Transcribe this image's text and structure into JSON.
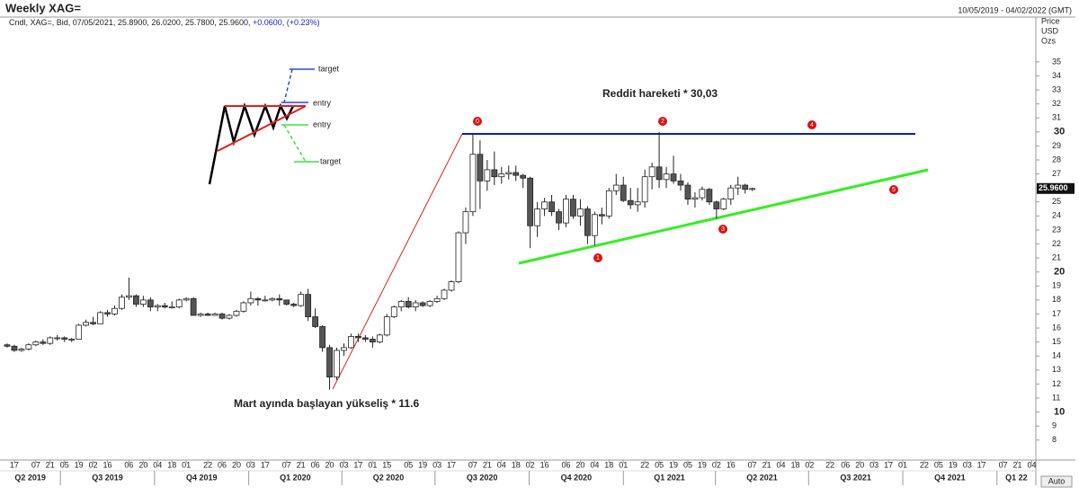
{
  "chart_data": {
    "type": "candlestick",
    "title": "Weekly XAG=",
    "date_range": "10/05/2019 - 04/02/2022 (GMT)",
    "info": "Cndl, XAG=, Bid, 07/05/2021, 25.8900, 26.0200, 25.7800, 25.9600,",
    "change": "+0.0600, (+0.23%)",
    "y_axis_label": [
      "Price",
      "USD",
      "Ozs"
    ],
    "last_price": {
      "value": 25.96,
      "label": "25.9600"
    },
    "bull_color": "#ffffff",
    "bear_color": "#555555",
    "x": [
      "2019-05-10",
      "2019-05-17",
      "2019-05-24",
      "2019-05-31",
      "2019-06-07",
      "2019-06-14",
      "2019-06-21",
      "2019-06-28",
      "2019-07-05",
      "2019-07-12",
      "2019-07-19",
      "2019-07-26",
      "2019-08-02",
      "2019-08-09",
      "2019-08-16",
      "2019-08-23",
      "2019-08-30",
      "2019-09-06",
      "2019-09-13",
      "2019-09-20",
      "2019-09-27",
      "2019-10-04",
      "2019-10-11",
      "2019-10-18",
      "2019-10-25",
      "2019-11-01",
      "2019-11-08",
      "2019-11-15",
      "2019-11-22",
      "2019-11-29",
      "2019-12-06",
      "2019-12-13",
      "2019-12-20",
      "2019-12-27",
      "2020-01-03",
      "2020-01-10",
      "2020-01-17",
      "2020-01-24",
      "2020-01-31",
      "2020-02-07",
      "2020-02-14",
      "2020-02-21",
      "2020-02-28",
      "2020-03-06",
      "2020-03-13",
      "2020-03-20",
      "2020-03-27",
      "2020-04-03",
      "2020-04-10",
      "2020-04-17",
      "2020-04-24",
      "2020-05-01",
      "2020-05-08",
      "2020-05-15",
      "2020-05-22",
      "2020-05-29",
      "2020-06-05",
      "2020-06-12",
      "2020-06-19",
      "2020-06-26",
      "2020-07-03",
      "2020-07-10",
      "2020-07-17",
      "2020-07-24",
      "2020-07-31",
      "2020-08-07",
      "2020-08-14",
      "2020-08-21",
      "2020-08-28",
      "2020-09-04",
      "2020-09-11",
      "2020-09-18",
      "2020-09-25",
      "2020-10-02",
      "2020-10-09",
      "2020-10-16",
      "2020-10-23",
      "2020-10-30",
      "2020-11-06",
      "2020-11-13",
      "2020-11-20",
      "2020-11-27",
      "2020-12-04",
      "2020-12-11",
      "2020-12-18",
      "2020-12-25",
      "2021-01-01",
      "2021-01-08",
      "2021-01-15",
      "2021-01-22",
      "2021-01-29",
      "2021-02-05",
      "2021-02-12",
      "2021-02-19",
      "2021-02-26",
      "2021-03-05",
      "2021-03-12",
      "2021-03-19",
      "2021-03-26",
      "2021-04-02",
      "2021-04-09",
      "2021-04-16",
      "2021-04-23",
      "2021-04-30",
      "2021-05-07"
    ],
    "ohlc": [
      [
        14.8,
        14.9,
        14.6,
        14.7
      ],
      [
        14.7,
        14.8,
        14.3,
        14.4
      ],
      [
        14.4,
        14.6,
        14.3,
        14.5
      ],
      [
        14.5,
        14.9,
        14.4,
        14.8
      ],
      [
        14.8,
        15.1,
        14.7,
        15.0
      ],
      [
        15.0,
        15.2,
        14.8,
        14.9
      ],
      [
        14.9,
        15.4,
        14.8,
        15.3
      ],
      [
        15.3,
        15.5,
        15.1,
        15.3
      ],
      [
        15.3,
        15.4,
        15.0,
        15.2
      ],
      [
        15.2,
        15.3,
        15.0,
        15.2
      ],
      [
        15.2,
        16.3,
        15.2,
        16.2
      ],
      [
        16.2,
        16.6,
        16.1,
        16.4
      ],
      [
        16.4,
        16.8,
        16.2,
        16.3
      ],
      [
        16.3,
        17.2,
        16.3,
        17.1
      ],
      [
        17.1,
        17.3,
        16.8,
        17.0
      ],
      [
        17.0,
        17.6,
        16.9,
        17.4
      ],
      [
        17.4,
        18.4,
        17.3,
        18.2
      ],
      [
        18.2,
        19.6,
        18.0,
        18.3
      ],
      [
        18.3,
        18.4,
        17.5,
        17.7
      ],
      [
        17.7,
        18.3,
        17.5,
        18.0
      ],
      [
        18.0,
        18.2,
        17.2,
        17.5
      ],
      [
        17.5,
        17.7,
        17.2,
        17.6
      ],
      [
        17.6,
        17.8,
        17.4,
        17.5
      ],
      [
        17.5,
        17.9,
        17.4,
        17.5
      ],
      [
        17.5,
        18.1,
        17.4,
        18.0
      ],
      [
        18.0,
        18.2,
        17.9,
        18.1
      ],
      [
        18.1,
        18.2,
        16.9,
        16.9
      ],
      [
        16.9,
        17.1,
        16.8,
        17.0
      ],
      [
        17.0,
        17.1,
        16.9,
        16.9
      ],
      [
        16.9,
        17.1,
        16.9,
        17.0
      ],
      [
        17.0,
        17.1,
        16.6,
        16.7
      ],
      [
        16.7,
        17.0,
        16.6,
        16.9
      ],
      [
        16.9,
        17.3,
        16.8,
        17.2
      ],
      [
        17.2,
        17.9,
        17.1,
        17.8
      ],
      [
        17.8,
        18.6,
        17.6,
        18.1
      ],
      [
        18.1,
        18.2,
        17.6,
        18.0
      ],
      [
        18.0,
        18.3,
        17.9,
        18.0
      ],
      [
        18.0,
        18.2,
        17.9,
        18.1
      ],
      [
        18.1,
        18.4,
        17.6,
        18.0
      ],
      [
        18.0,
        18.0,
        17.6,
        17.7
      ],
      [
        17.7,
        17.8,
        17.5,
        17.6
      ],
      [
        17.6,
        18.6,
        17.5,
        18.4
      ],
      [
        18.4,
        18.8,
        16.5,
        16.8
      ],
      [
        16.8,
        17.4,
        16.0,
        16.1
      ],
      [
        16.1,
        16.2,
        14.3,
        14.6
      ],
      [
        14.6,
        14.8,
        11.6,
        12.5
      ],
      [
        12.5,
        14.6,
        12.3,
        14.4
      ],
      [
        14.4,
        14.9,
        14.0,
        14.6
      ],
      [
        14.6,
        15.6,
        14.5,
        15.4
      ],
      [
        15.4,
        15.6,
        15.0,
        15.3
      ],
      [
        15.3,
        15.5,
        15.0,
        15.2
      ],
      [
        15.2,
        15.4,
        14.6,
        15.0
      ],
      [
        15.0,
        15.6,
        14.9,
        15.5
      ],
      [
        15.5,
        17.0,
        15.4,
        16.8
      ],
      [
        16.8,
        17.6,
        16.7,
        17.5
      ],
      [
        17.5,
        18.0,
        17.2,
        17.9
      ],
      [
        17.9,
        18.2,
        17.4,
        17.5
      ],
      [
        17.5,
        18.0,
        17.2,
        17.8
      ],
      [
        17.8,
        17.9,
        17.5,
        17.6
      ],
      [
        17.6,
        18.0,
        17.5,
        17.9
      ],
      [
        17.9,
        18.3,
        17.8,
        18.1
      ],
      [
        18.1,
        18.8,
        18.0,
        18.7
      ],
      [
        18.7,
        19.4,
        18.6,
        19.3
      ],
      [
        19.3,
        22.9,
        19.2,
        22.8
      ],
      [
        22.8,
        24.6,
        22.0,
        24.3
      ],
      [
        24.3,
        29.9,
        24.0,
        28.4
      ],
      [
        28.4,
        29.4,
        24.5,
        26.5
      ],
      [
        26.5,
        28.0,
        25.8,
        27.3
      ],
      [
        27.3,
        28.6,
        26.2,
        26.8
      ],
      [
        26.8,
        27.5,
        26.3,
        27.0
      ],
      [
        27.0,
        27.6,
        26.6,
        27.1
      ],
      [
        27.1,
        27.6,
        26.5,
        26.9
      ],
      [
        26.9,
        27.0,
        26.0,
        26.7
      ],
      [
        26.7,
        26.8,
        21.7,
        23.3
      ],
      [
        23.3,
        25.0,
        22.5,
        24.5
      ],
      [
        24.5,
        25.3,
        24.0,
        25.0
      ],
      [
        25.0,
        25.5,
        24.0,
        24.3
      ],
      [
        24.3,
        24.5,
        23.0,
        23.5
      ],
      [
        23.5,
        25.5,
        23.2,
        25.2
      ],
      [
        25.2,
        25.5,
        23.8,
        24.0
      ],
      [
        24.0,
        25.2,
        23.3,
        24.5
      ],
      [
        24.5,
        24.7,
        22.0,
        22.6
      ],
      [
        22.6,
        24.3,
        21.9,
        24.1
      ],
      [
        24.1,
        24.6,
        23.4,
        24.0
      ],
      [
        24.0,
        26.0,
        23.8,
        25.8
      ],
      [
        25.8,
        27.0,
        25.5,
        26.2
      ],
      [
        26.2,
        26.8,
        25.0,
        25.1
      ],
      [
        25.1,
        26.0,
        24.5,
        24.8
      ],
      [
        24.8,
        26.0,
        24.3,
        25.0
      ],
      [
        25.0,
        27.3,
        24.6,
        26.8
      ],
      [
        26.8,
        27.8,
        25.9,
        27.5
      ],
      [
        27.5,
        30.0,
        26.0,
        26.6
      ],
      [
        26.6,
        27.5,
        26.0,
        27.0
      ],
      [
        27.0,
        28.3,
        26.3,
        26.5
      ],
      [
        26.5,
        27.0,
        25.8,
        26.2
      ],
      [
        26.2,
        26.4,
        24.8,
        25.2
      ],
      [
        25.2,
        25.7,
        24.6,
        25.3
      ],
      [
        25.3,
        26.1,
        25.1,
        25.9
      ],
      [
        25.9,
        26.0,
        24.8,
        25.0
      ],
      [
        25.0,
        25.1,
        23.8,
        24.5
      ],
      [
        24.5,
        25.3,
        24.4,
        25.2
      ],
      [
        25.2,
        26.2,
        24.8,
        26.0
      ],
      [
        26.0,
        26.8,
        25.5,
        26.2
      ],
      [
        26.2,
        26.3,
        25.6,
        25.9
      ],
      [
        25.89,
        26.02,
        25.78,
        25.96
      ]
    ],
    "xlim": [
      "2019-05-03",
      "2022-02-08"
    ],
    "ylim": [
      6.7,
      38.2
    ],
    "yticks": [
      8,
      9,
      10,
      11,
      12,
      13,
      14,
      15,
      16,
      17,
      18,
      19,
      20,
      21,
      22,
      23,
      24,
      25,
      26,
      27,
      28,
      29,
      30,
      31,
      32,
      33,
      34,
      35
    ],
    "xticks": [
      {
        "value": "2019-05-17",
        "label": "17"
      },
      {
        "value": "2019-06-07",
        "label": "07"
      },
      {
        "value": "2019-06-21",
        "label": "21"
      },
      {
        "value": "2019-07-05",
        "label": "05"
      },
      {
        "value": "2019-07-19",
        "label": "19"
      },
      {
        "value": "2019-08-02",
        "label": "02"
      },
      {
        "value": "2019-08-16",
        "label": "16"
      },
      {
        "value": "2019-09-06",
        "label": "06"
      },
      {
        "value": "2019-09-20",
        "label": "20"
      },
      {
        "value": "2019-10-04",
        "label": "04"
      },
      {
        "value": "2019-10-18",
        "label": "18"
      },
      {
        "value": "2019-11-01",
        "label": "01"
      },
      {
        "value": "2019-11-22",
        "label": "22"
      },
      {
        "value": "2019-12-06",
        "label": "06"
      },
      {
        "value": "2019-12-20",
        "label": "20"
      },
      {
        "value": "2020-01-03",
        "label": "03"
      },
      {
        "value": "2020-01-17",
        "label": "17"
      },
      {
        "value": "2020-02-07",
        "label": "07"
      },
      {
        "value": "2020-02-21",
        "label": "21"
      },
      {
        "value": "2020-03-06",
        "label": "06"
      },
      {
        "value": "2020-03-20",
        "label": "20"
      },
      {
        "value": "2020-04-03",
        "label": "03"
      },
      {
        "value": "2020-04-17",
        "label": "17"
      },
      {
        "value": "2020-05-01",
        "label": "01"
      },
      {
        "value": "2020-05-15",
        "label": "15"
      },
      {
        "value": "2020-06-05",
        "label": "05"
      },
      {
        "value": "2020-06-19",
        "label": "19"
      },
      {
        "value": "2020-07-03",
        "label": "03"
      },
      {
        "value": "2020-07-17",
        "label": "17"
      },
      {
        "value": "2020-08-07",
        "label": "07"
      },
      {
        "value": "2020-08-21",
        "label": "21"
      },
      {
        "value": "2020-09-04",
        "label": "04"
      },
      {
        "value": "2020-09-18",
        "label": "18"
      },
      {
        "value": "2020-10-02",
        "label": "02"
      },
      {
        "value": "2020-10-16",
        "label": "16"
      },
      {
        "value": "2020-11-06",
        "label": "06"
      },
      {
        "value": "2020-11-20",
        "label": "20"
      },
      {
        "value": "2020-12-04",
        "label": "04"
      },
      {
        "value": "2020-12-18",
        "label": "18"
      },
      {
        "value": "2021-01-01",
        "label": "01"
      },
      {
        "value": "2021-01-22",
        "label": "22"
      },
      {
        "value": "2021-02-05",
        "label": "05"
      },
      {
        "value": "2021-02-19",
        "label": "19"
      },
      {
        "value": "2021-03-05",
        "label": "05"
      },
      {
        "value": "2021-03-19",
        "label": "19"
      },
      {
        "value": "2021-04-02",
        "label": "02"
      },
      {
        "value": "2021-04-16",
        "label": "16"
      },
      {
        "value": "2021-05-07",
        "label": "07"
      },
      {
        "value": "2021-05-21",
        "label": "21"
      },
      {
        "value": "2021-06-04",
        "label": "04"
      },
      {
        "value": "2021-06-18",
        "label": "18"
      },
      {
        "value": "2021-07-02",
        "label": "02"
      },
      {
        "value": "2021-07-22",
        "label": "22"
      },
      {
        "value": "2021-08-06",
        "label": "06"
      },
      {
        "value": "2021-08-20",
        "label": "20"
      },
      {
        "value": "2021-09-03",
        "label": "03"
      },
      {
        "value": "2021-09-17",
        "label": "17"
      },
      {
        "value": "2021-10-01",
        "label": "01"
      },
      {
        "value": "2021-10-22",
        "label": "22"
      },
      {
        "value": "2021-11-05",
        "label": "05"
      },
      {
        "value": "2021-11-19",
        "label": "19"
      },
      {
        "value": "2021-12-03",
        "label": "03"
      },
      {
        "value": "2021-12-17",
        "label": "17"
      },
      {
        "value": "2022-01-07",
        "label": "07"
      },
      {
        "value": "2022-01-21",
        "label": "21"
      },
      {
        "value": "2022-02-04",
        "label": "04"
      }
    ],
    "quarters": [
      {
        "value": "2019-04-01",
        "label": "Q2 2019"
      },
      {
        "value": "2019-07-01",
        "label": "Q3 2019"
      },
      {
        "value": "2019-10-01",
        "label": "Q4 2019"
      },
      {
        "value": "2020-01-01",
        "label": "Q1 2020"
      },
      {
        "value": "2020-04-01",
        "label": "Q2 2020"
      },
      {
        "value": "2020-07-01",
        "label": "Q3 2020"
      },
      {
        "value": "2020-10-01",
        "label": "Q4 2020"
      },
      {
        "value": "2021-01-01",
        "label": "Q1 2021"
      },
      {
        "value": "2021-04-01",
        "label": "Q2 2021"
      },
      {
        "value": "2021-07-01",
        "label": "Q3 2021"
      },
      {
        "value": "2021-10-01",
        "label": "Q4 2021"
      },
      {
        "value": "2022-01-01",
        "label": "Q1 22"
      }
    ],
    "auto_button": "Auto",
    "annotations": {
      "reddit": "Reddit hareketi  * 30,03",
      "march": "Mart ayında başlayan yükseliş * 11.6",
      "points": [
        "0",
        "1",
        "2",
        "3",
        "4",
        "5"
      ],
      "pattern": [
        "target",
        "entry",
        "entry",
        "target"
      ]
    }
  }
}
